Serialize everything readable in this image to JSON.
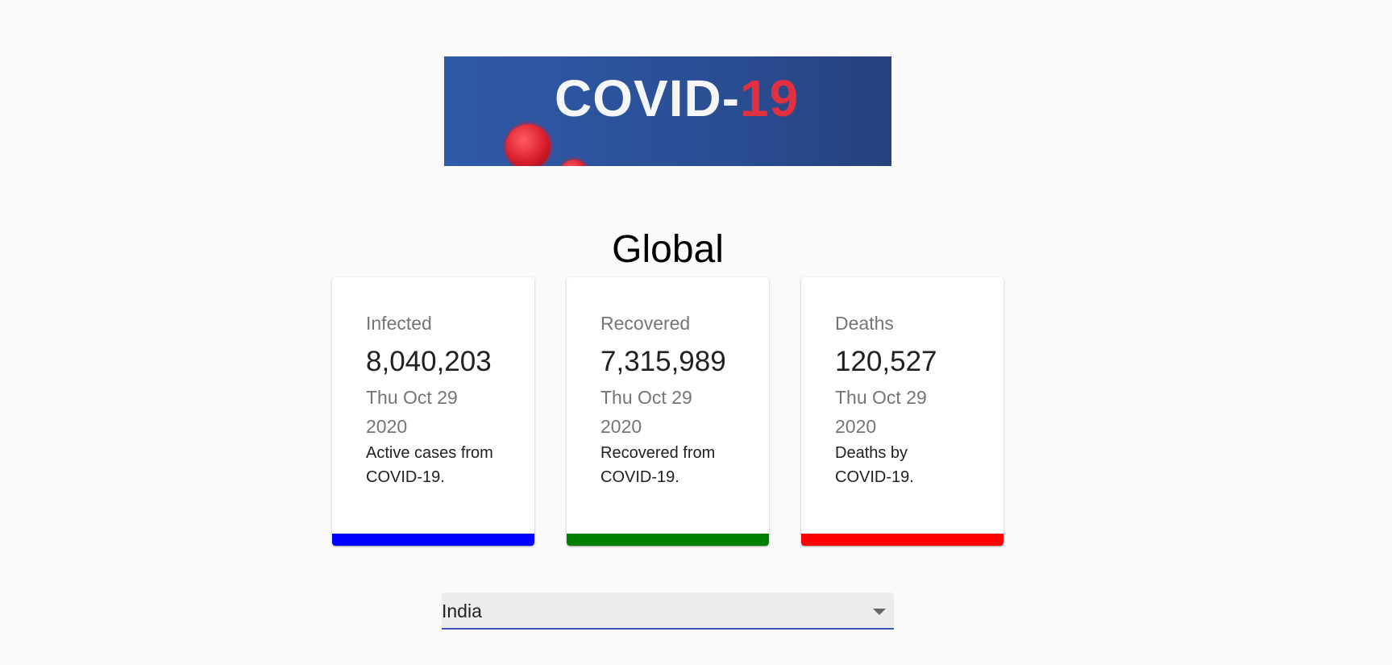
{
  "banner": {
    "text_main": "COVID-",
    "text_accent": "19"
  },
  "title": "Global",
  "cards": [
    {
      "label": "Infected",
      "value": "8,040,203",
      "date": "Thu Oct 29 2020",
      "description": "Active cases from COVID-19.",
      "bar_color": "#0000ff"
    },
    {
      "label": "Recovered",
      "value": "7,315,989",
      "date": "Thu Oct 29 2020",
      "description": "Recovered from COVID-19.",
      "bar_color": "#008000"
    },
    {
      "label": "Deaths",
      "value": "120,527",
      "date": "Thu Oct 29 2020",
      "description": "Deaths by COVID-19.",
      "bar_color": "#ff0000"
    }
  ],
  "country_select": {
    "selected": "India",
    "underline_color": "#3f51b5"
  },
  "icons": {
    "dropdown": "chevron-down-icon",
    "virus": "virus-icon"
  }
}
